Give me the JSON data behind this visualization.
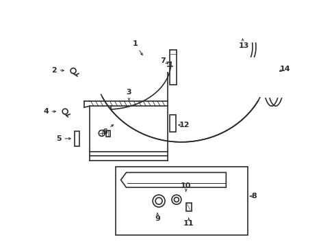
{
  "bg_color": "#ffffff",
  "line_color": "#2a2a2a",
  "lw": 1.2
}
